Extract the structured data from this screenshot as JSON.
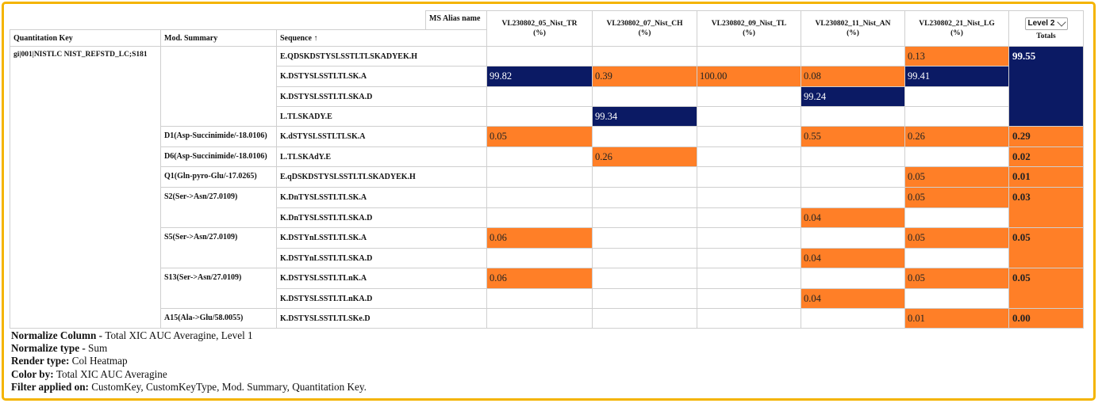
{
  "header": {
    "ms_alias": "MS Alias name",
    "quant_key": "Quantitation Key",
    "mod_summary": "Mod. Summary",
    "sequence": "Sequence ↑",
    "samples": [
      {
        "name": "VL230802_05_Nist_TR",
        "unit": "(%)"
      },
      {
        "name": "VL230802_07_Nist_CH",
        "unit": "(%)"
      },
      {
        "name": "VL230802_09_Nist_TL",
        "unit": "(%)"
      },
      {
        "name": "VL230802_11_Nist_AN",
        "unit": "(%)"
      },
      {
        "name": "VL230802_21_Nist_LG",
        "unit": "(%)"
      }
    ],
    "level_select": "Level 2",
    "totals": "Totals"
  },
  "quant_key_value": "gi|001|NISTLC NIST_REFSTD_LC;S181",
  "rows": [
    {
      "mod": "",
      "seq": "E.QDSKDSTYSLSSTLTLSKADYEK.H",
      "vals": [
        "",
        "",
        "",
        "",
        "0.13"
      ],
      "colors": [
        "",
        "",
        "",
        "",
        "o"
      ]
    },
    {
      "mod": "",
      "seq": "K.DSTYSLSSTLTLSK.A",
      "vals": [
        "99.82",
        "0.39",
        "100.00",
        "0.08",
        "99.41"
      ],
      "colors": [
        "n",
        "o",
        "o",
        "o",
        "n"
      ]
    },
    {
      "mod": "",
      "seq": "K.DSTYSLSSTLTLSKA.D",
      "vals": [
        "",
        "",
        "",
        "99.24",
        ""
      ],
      "colors": [
        "",
        "",
        "",
        "n",
        ""
      ]
    },
    {
      "mod": "",
      "seq": "L.TLSKADY.E",
      "vals": [
        "",
        "99.34",
        "",
        "",
        ""
      ],
      "colors": [
        "",
        "n",
        "",
        "",
        ""
      ]
    },
    {
      "mod": "D1(Asp-Succinimide/-18.0106)",
      "seq": "K.dSTYSLSSTLTLSK.A",
      "vals": [
        "0.05",
        "",
        "",
        "0.55",
        "0.26"
      ],
      "colors": [
        "o",
        "",
        "",
        "o",
        "o"
      ]
    },
    {
      "mod": "D6(Asp-Succinimide/-18.0106)",
      "seq": "L.TLSKAdY.E",
      "vals": [
        "",
        "0.26",
        "",
        "",
        ""
      ],
      "colors": [
        "",
        "o",
        "",
        "",
        ""
      ]
    },
    {
      "mod": "Q1(Gln-pyro-Glu/-17.0265)",
      "seq": "E.qDSKDSTYSLSSTLTLSKADYEK.H",
      "vals": [
        "",
        "",
        "",
        "",
        "0.05"
      ],
      "colors": [
        "",
        "",
        "",
        "",
        "o"
      ]
    },
    {
      "mod": "S2(Ser->Asn/27.0109)",
      "seq": "K.DnTYSLSSTLTLSK.A",
      "vals": [
        "",
        "",
        "",
        "",
        "0.05"
      ],
      "colors": [
        "",
        "",
        "",
        "",
        "o"
      ]
    },
    {
      "mod": "",
      "seq": "K.DnTYSLSSTLTLSKA.D",
      "vals": [
        "",
        "",
        "",
        "0.04",
        ""
      ],
      "colors": [
        "",
        "",
        "",
        "o",
        ""
      ]
    },
    {
      "mod": "S5(Ser->Asn/27.0109)",
      "seq": "K.DSTYnLSSTLTLSK.A",
      "vals": [
        "0.06",
        "",
        "",
        "",
        "0.05"
      ],
      "colors": [
        "o",
        "",
        "",
        "",
        "o"
      ]
    },
    {
      "mod": "",
      "seq": "K.DSTYnLSSTLTLSKA.D",
      "vals": [
        "",
        "",
        "",
        "0.04",
        ""
      ],
      "colors": [
        "",
        "",
        "",
        "o",
        ""
      ]
    },
    {
      "mod": "S13(Ser->Asn/27.0109)",
      "seq": "K.DSTYSLSSTLTLnK.A",
      "vals": [
        "0.06",
        "",
        "",
        "",
        "0.05"
      ],
      "colors": [
        "o",
        "",
        "",
        "",
        "o"
      ]
    },
    {
      "mod": "",
      "seq": "K.DSTYSLSSTLTLnKA.D",
      "vals": [
        "",
        "",
        "",
        "0.04",
        ""
      ],
      "colors": [
        "",
        "",
        "",
        "o",
        ""
      ]
    },
    {
      "mod": "A15(Ala->Glu/58.0055)",
      "seq": "K.DSTYSLSSTLTLSKe.D",
      "vals": [
        "",
        "",
        "",
        "",
        "0.01"
      ],
      "colors": [
        "",
        "",
        "",
        "",
        "o"
      ]
    }
  ],
  "totals": [
    {
      "value": "99.55",
      "rowspan": 4,
      "color": "n"
    },
    {
      "value": "0.29",
      "rowspan": 1,
      "color": "o"
    },
    {
      "value": "0.02",
      "rowspan": 1,
      "color": "o"
    },
    {
      "value": "0.01",
      "rowspan": 1,
      "color": "o"
    },
    {
      "value": "0.03",
      "rowspan": 2,
      "color": "o"
    },
    {
      "value": "0.05",
      "rowspan": 2,
      "color": "o"
    },
    {
      "value": "0.05",
      "rowspan": 2,
      "color": "o"
    },
    {
      "value": "0.00",
      "rowspan": 1,
      "color": "o"
    }
  ],
  "colors": {
    "orange": "#ff7f27",
    "navy": "#0b1a64",
    "frame": "#f4b400"
  },
  "footer": [
    {
      "label": "Normalize Column - ",
      "value": "Total XIC AUC Averagine, Level 1"
    },
    {
      "label": "Normalize type - ",
      "value": "Sum"
    },
    {
      "label": "Render type: ",
      "value": "Col Heatmap"
    },
    {
      "label": "Color by: ",
      "value": "Total XIC AUC Averagine"
    },
    {
      "label": "Filter applied on: ",
      "value": "CustomKey, CustomKeyType, Mod. Summary, Quantitation Key."
    }
  ]
}
